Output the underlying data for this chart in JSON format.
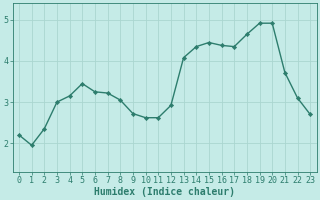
{
  "x": [
    0,
    1,
    2,
    3,
    4,
    5,
    6,
    7,
    8,
    9,
    10,
    11,
    12,
    13,
    14,
    15,
    16,
    17,
    18,
    19,
    20,
    21,
    22,
    23
  ],
  "y": [
    2.2,
    1.95,
    2.35,
    3.0,
    3.15,
    3.45,
    3.25,
    3.22,
    3.05,
    2.72,
    2.62,
    2.62,
    2.92,
    4.08,
    4.35,
    4.45,
    4.38,
    4.35,
    4.65,
    4.92,
    4.92,
    3.72,
    3.1,
    2.7
  ],
  "line_color": "#2d7d6d",
  "marker_color": "#2d7d6d",
  "bg_color": "#c5ebe7",
  "grid_color": "#aad6d0",
  "axis_color": "#2d7d6d",
  "tick_color": "#2d7d6d",
  "xlabel": "Humidex (Indice chaleur)",
  "ylim": [
    1.3,
    5.4
  ],
  "xlim": [
    -0.5,
    23.5
  ],
  "yticks": [
    2,
    3,
    4,
    5
  ],
  "xticks": [
    0,
    1,
    2,
    3,
    4,
    5,
    6,
    7,
    8,
    9,
    10,
    11,
    12,
    13,
    14,
    15,
    16,
    17,
    18,
    19,
    20,
    21,
    22,
    23
  ],
  "xlabel_fontsize": 7.0,
  "tick_fontsize": 6.0,
  "linewidth": 1.0,
  "markersize": 2.2,
  "fig_width": 3.2,
  "fig_height": 2.0,
  "dpi": 100
}
